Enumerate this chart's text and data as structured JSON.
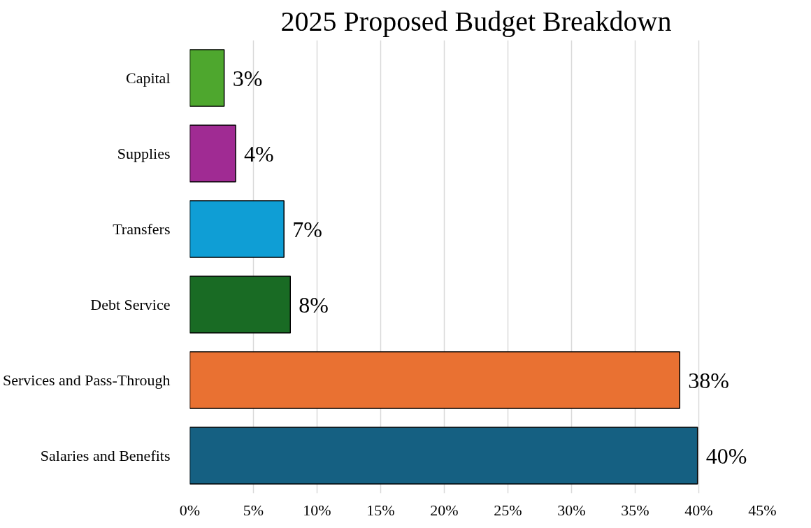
{
  "chart_data": {
    "type": "bar",
    "orientation": "horizontal",
    "title": "2025 Proposed Budget Breakdown",
    "categories": [
      "Capital",
      "Supplies",
      "Transfers",
      "Debt Service",
      "Services and Pass-Through",
      "Salaries and Benefits"
    ],
    "values": [
      2.7,
      3.6,
      7.4,
      7.9,
      38.5,
      39.9
    ],
    "value_labels": [
      "3%",
      "4%",
      "7%",
      "8%",
      "38%",
      "40%"
    ],
    "colors": [
      "#4ea72e",
      "#a02b93",
      "#0f9ed5",
      "#196b24",
      "#e97132",
      "#156082"
    ],
    "xlim": [
      0,
      45
    ],
    "xticks": [
      {
        "value": 0,
        "label": "0%"
      },
      {
        "value": 5,
        "label": "5%"
      },
      {
        "value": 10,
        "label": "10%"
      },
      {
        "value": 15,
        "label": "15%"
      },
      {
        "value": 20,
        "label": "20%"
      },
      {
        "value": 25,
        "label": "25%"
      },
      {
        "value": 30,
        "label": "30%"
      },
      {
        "value": 35,
        "label": "35%"
      },
      {
        "value": 40,
        "label": "40%"
      },
      {
        "value": 45,
        "label": "45%"
      }
    ],
    "grid": "x"
  }
}
